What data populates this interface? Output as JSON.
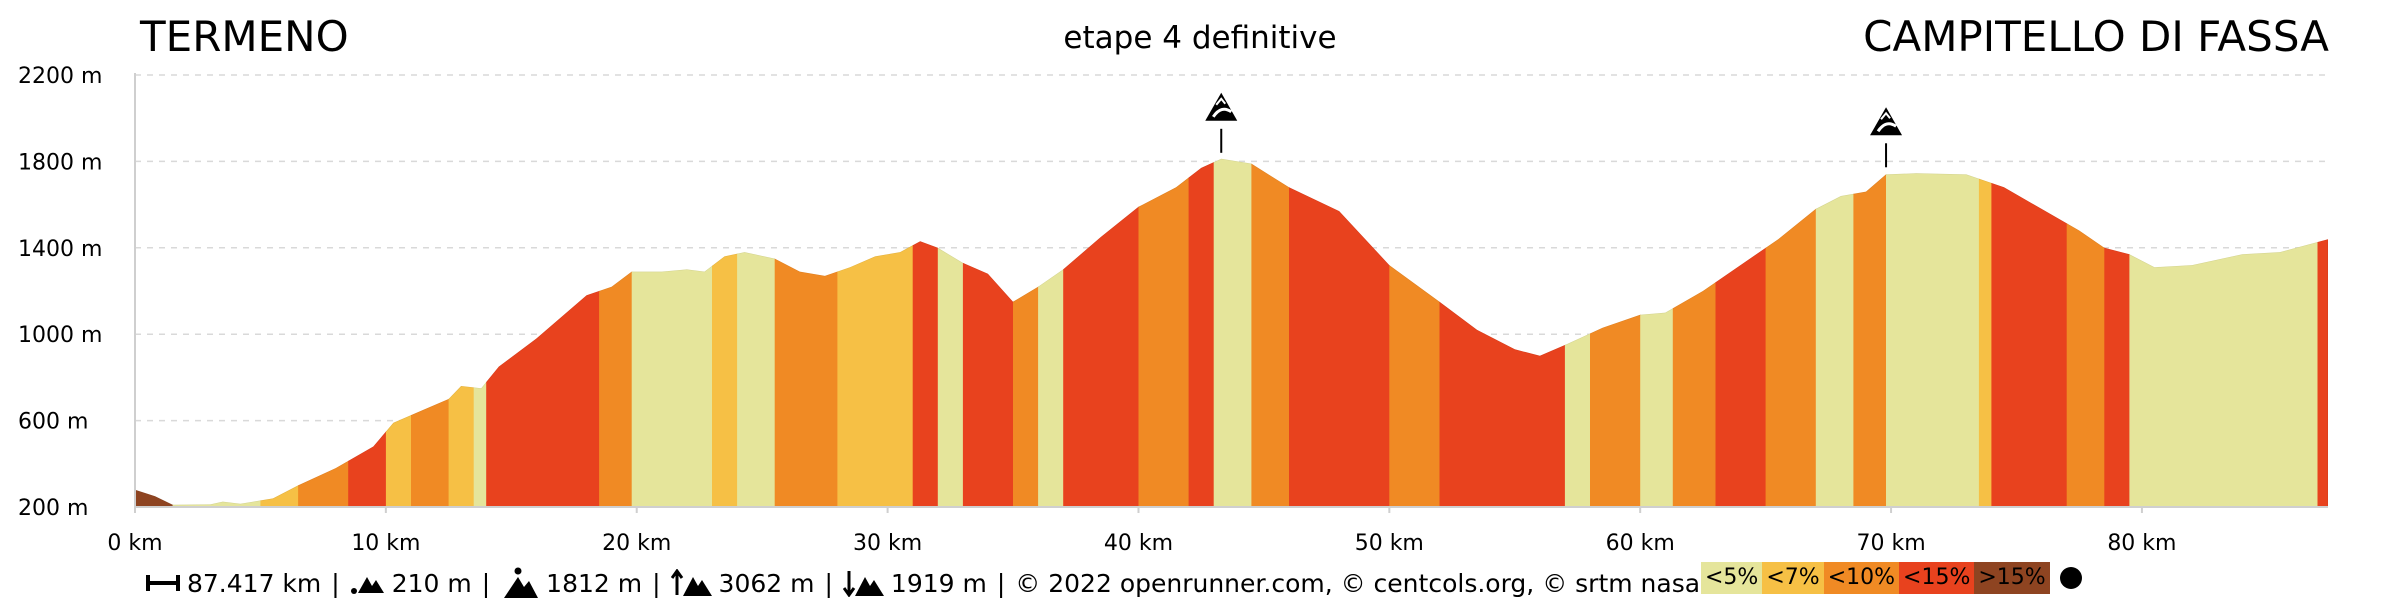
{
  "header": {
    "start": "TERMENO",
    "stage": "etape 4 definitive",
    "end": "CAMPITELLO DI FASSA"
  },
  "footer": {
    "distance": "87.417 km",
    "min_alt": "210 m",
    "max_alt": "1812 m",
    "ascent": "3062 m",
    "descent": "1919 m",
    "copyright": "© 2022 openrunner.com, © centcols.org, © srtm nasa"
  },
  "legend": [
    {
      "label": "<5%",
      "color": "#e5e59b"
    },
    {
      "label": "<7%",
      "color": "#f6c045"
    },
    {
      "label": "<10%",
      "color": "#f08a24"
    },
    {
      "label": "<15%",
      "color": "#e8421e"
    },
    {
      "label": ">15%",
      "color": "#8e4421"
    }
  ],
  "chart_data": {
    "type": "area",
    "x_unit": "km",
    "y_unit": "m",
    "xlim": [
      0,
      87.417
    ],
    "ylim": [
      200,
      2200
    ],
    "x_ticks": [
      "0 km",
      "10 km",
      "20 km",
      "30 km",
      "40 km",
      "50 km",
      "60 km",
      "70 km",
      "80 km"
    ],
    "y_ticks": [
      "200 m",
      "600 m",
      "1000 m",
      "1400 m",
      "1800 m",
      "2200 m"
    ],
    "grid": true,
    "profile": [
      [
        0,
        280
      ],
      [
        0.8,
        250
      ],
      [
        1.5,
        210
      ],
      [
        3,
        212
      ],
      [
        3.5,
        225
      ],
      [
        4.2,
        215
      ],
      [
        5.5,
        240
      ],
      [
        6.5,
        300
      ],
      [
        8,
        380
      ],
      [
        9.5,
        480
      ],
      [
        10.3,
        590
      ],
      [
        11.5,
        650
      ],
      [
        12.5,
        700
      ],
      [
        13,
        760
      ],
      [
        13.8,
        750
      ],
      [
        14.5,
        850
      ],
      [
        16,
        980
      ],
      [
        17,
        1080
      ],
      [
        18,
        1180
      ],
      [
        19,
        1220
      ],
      [
        19.8,
        1290
      ],
      [
        21,
        1290
      ],
      [
        22,
        1300
      ],
      [
        22.7,
        1290
      ],
      [
        23.5,
        1360
      ],
      [
        24.3,
        1380
      ],
      [
        25.5,
        1350
      ],
      [
        26.5,
        1290
      ],
      [
        27.5,
        1270
      ],
      [
        28.5,
        1310
      ],
      [
        29.5,
        1360
      ],
      [
        30.5,
        1380
      ],
      [
        31.3,
        1430
      ],
      [
        32,
        1400
      ],
      [
        33,
        1330
      ],
      [
        34,
        1280
      ],
      [
        35,
        1150
      ],
      [
        36,
        1220
      ],
      [
        37,
        1300
      ],
      [
        38.5,
        1450
      ],
      [
        40,
        1590
      ],
      [
        41.5,
        1680
      ],
      [
        42.5,
        1770
      ],
      [
        43.3,
        1812
      ],
      [
        44.5,
        1790
      ],
      [
        46,
        1680
      ],
      [
        48,
        1570
      ],
      [
        50,
        1320
      ],
      [
        52,
        1150
      ],
      [
        53.5,
        1020
      ],
      [
        55,
        930
      ],
      [
        56,
        900
      ],
      [
        57,
        950
      ],
      [
        58.5,
        1030
      ],
      [
        60,
        1090
      ],
      [
        61,
        1100
      ],
      [
        62.5,
        1200
      ],
      [
        64,
        1320
      ],
      [
        65.5,
        1440
      ],
      [
        67,
        1580
      ],
      [
        68,
        1640
      ],
      [
        69,
        1660
      ],
      [
        69.8,
        1740
      ],
      [
        71,
        1745
      ],
      [
        73,
        1740
      ],
      [
        74.5,
        1680
      ],
      [
        76,
        1580
      ],
      [
        77.5,
        1480
      ],
      [
        78.5,
        1400
      ],
      [
        79.5,
        1370
      ],
      [
        80.5,
        1310
      ],
      [
        82,
        1320
      ],
      [
        84,
        1370
      ],
      [
        85.5,
        1380
      ],
      [
        87.417,
        1440
      ]
    ],
    "slope_segments": [
      [
        0,
        1.5,
        ">15%"
      ],
      [
        1.5,
        5,
        "<5%"
      ],
      [
        5,
        6.5,
        "<7%"
      ],
      [
        6.5,
        8.5,
        "<10%"
      ],
      [
        8.5,
        10,
        "<15%"
      ],
      [
        10,
        11,
        "<7%"
      ],
      [
        11,
        12.5,
        "<10%"
      ],
      [
        12.5,
        13.5,
        "<7%"
      ],
      [
        13.5,
        14,
        "<5%"
      ],
      [
        14,
        18.5,
        "<15%"
      ],
      [
        18.5,
        19.8,
        "<10%"
      ],
      [
        19.8,
        23,
        "<5%"
      ],
      [
        23,
        24,
        "<7%"
      ],
      [
        24,
        25.5,
        "<5%"
      ],
      [
        25.5,
        28,
        "<10%"
      ],
      [
        28,
        31,
        "<7%"
      ],
      [
        31,
        32,
        "<15%"
      ],
      [
        32,
        33,
        "<5%"
      ],
      [
        33,
        35,
        "<15%"
      ],
      [
        35,
        36,
        "<10%"
      ],
      [
        36,
        37,
        "<5%"
      ],
      [
        37,
        40,
        "<15%"
      ],
      [
        40,
        42,
        "<10%"
      ],
      [
        42,
        43,
        "<15%"
      ],
      [
        43,
        44.5,
        "<5%"
      ],
      [
        44.5,
        46,
        "<10%"
      ],
      [
        46,
        50,
        "<15%"
      ],
      [
        50,
        52,
        "<10%"
      ],
      [
        52,
        57,
        "<15%"
      ],
      [
        57,
        58,
        "<5%"
      ],
      [
        58,
        60,
        "<10%"
      ],
      [
        60,
        61.3,
        "<5%"
      ],
      [
        61.3,
        63,
        "<10%"
      ],
      [
        63,
        65,
        "<15%"
      ],
      [
        65,
        67,
        "<10%"
      ],
      [
        67,
        68.5,
        "<5%"
      ],
      [
        68.5,
        69.8,
        "<10%"
      ],
      [
        69.8,
        73.5,
        "<5%"
      ],
      [
        73.5,
        74,
        "<7%"
      ],
      [
        74,
        77,
        "<15%"
      ],
      [
        77,
        78.5,
        "<10%"
      ],
      [
        78.5,
        79.5,
        "<15%"
      ],
      [
        79.5,
        87,
        "<5%"
      ],
      [
        87,
        87.417,
        "<15%"
      ]
    ],
    "passes": [
      {
        "km": 43.3,
        "altitude": 1812
      },
      {
        "km": 69.8,
        "altitude": 1745
      }
    ]
  }
}
